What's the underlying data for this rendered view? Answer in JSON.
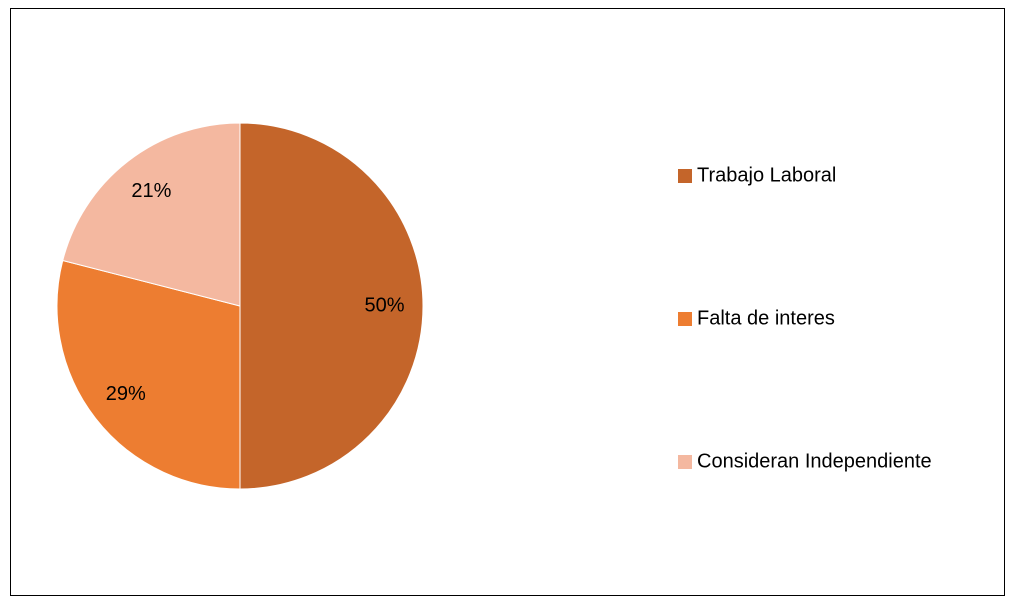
{
  "chart_data": {
    "type": "pie",
    "categories": [
      "Trabajo Laboral",
      "Falta de interes",
      "Consideran Independiente"
    ],
    "values": [
      50,
      29,
      21
    ],
    "value_labels": [
      "50%",
      "29%",
      "21%"
    ],
    "colors": [
      "#c4652a",
      "#ed7d31",
      "#f4b8a0"
    ],
    "legend": "right"
  }
}
